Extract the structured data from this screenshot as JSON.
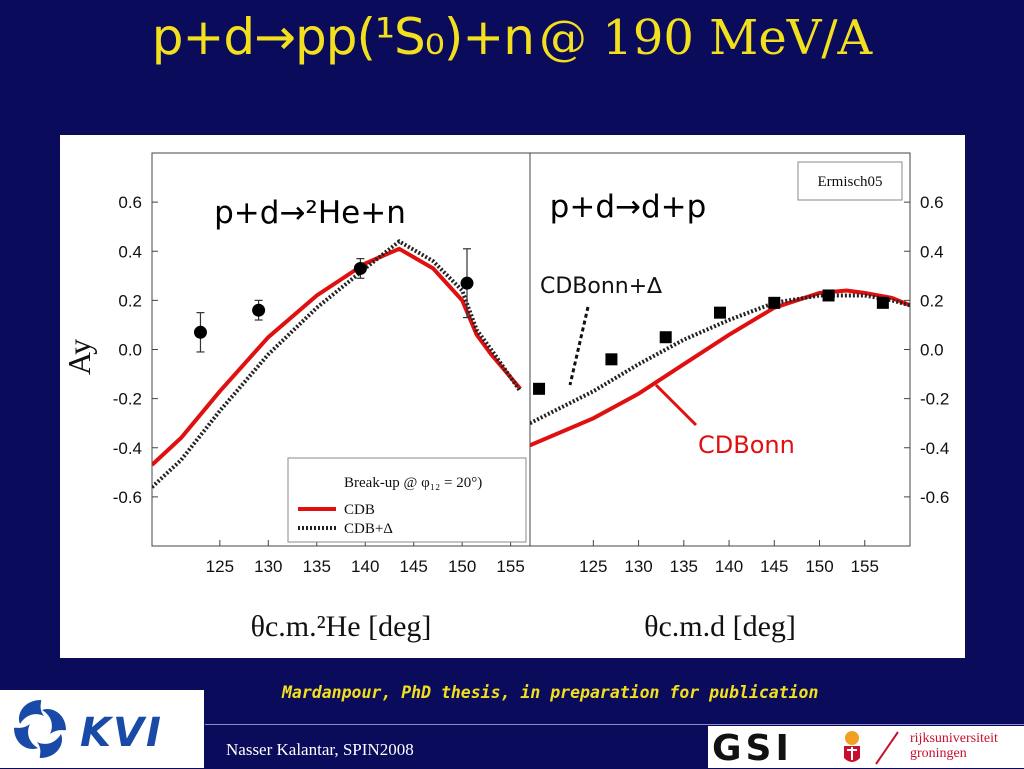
{
  "slide": {
    "title_main": "p+d→pp(¹S₀)+n",
    "title_sub": "@ 190 MeV/A",
    "citation": "Mardanpour, PhD thesis, in preparation for publication",
    "author": "Nasser Kalantar, SPIN2008",
    "logos": {
      "kvi": "KVI",
      "gsi": "GSI",
      "rug": "rijksuniversiteit\ngroningen"
    }
  },
  "colors": {
    "background": "#0b0b5c",
    "title": "#f2e01e",
    "cdb": "#e01010",
    "cdb_delta": "#222222",
    "data": "#000000"
  },
  "chart_data": [
    {
      "type": "line",
      "panel_title": "p+d→²He+n",
      "xlabel": "θc.m.²He [deg]",
      "ylabel": "Ay",
      "xlim": [
        118,
        157
      ],
      "ylim": [
        -0.8,
        0.8
      ],
      "xticks": [
        125,
        130,
        135,
        140,
        145,
        150,
        155
      ],
      "yticks": [
        0.6,
        0.4,
        0.2,
        0.0,
        -0.2,
        -0.4,
        -0.6
      ],
      "ytick_labels": [
        "0.6",
        "0.4",
        "0.2",
        "0.0",
        "-0.2",
        "-0.4",
        "-0.6"
      ],
      "legend": {
        "title": "Break-up @ φ₁₂ = 20°)",
        "position": "bottom-right",
        "entries": [
          "CDB",
          "CDB+Δ"
        ]
      },
      "series": [
        {
          "name": "CDB",
          "style": "solid",
          "x": [
            118,
            121,
            125,
            130,
            135,
            140,
            143.5,
            147,
            150,
            151.5,
            153,
            156
          ],
          "y": [
            -0.47,
            -0.36,
            -0.17,
            0.05,
            0.22,
            0.35,
            0.41,
            0.33,
            0.2,
            0.06,
            -0.02,
            -0.16
          ]
        },
        {
          "name": "CDB+Δ",
          "style": "dotted",
          "x": [
            118,
            121,
            125,
            130,
            135,
            140,
            143.5,
            147,
            150,
            151.5,
            153,
            156
          ],
          "y": [
            -0.56,
            -0.45,
            -0.25,
            -0.02,
            0.17,
            0.33,
            0.44,
            0.36,
            0.24,
            0.08,
            0.0,
            -0.17
          ]
        },
        {
          "name": "data",
          "style": "points",
          "x": [
            123,
            129,
            139.5,
            150.5
          ],
          "y": [
            0.07,
            0.16,
            0.33,
            0.27
          ],
          "err": [
            0.08,
            0.04,
            0.04,
            0.14
          ]
        }
      ]
    },
    {
      "type": "line",
      "panel_title": "p+d→d+p",
      "xlabel": "θc.m.d [deg]",
      "ylabel": "",
      "xlim": [
        118,
        160
      ],
      "ylim": [
        -0.8,
        0.8
      ],
      "xticks": [
        125,
        130,
        135,
        140,
        145,
        150,
        155
      ],
      "yticks": [
        0.6,
        0.4,
        0.2,
        0.0,
        -0.2,
        -0.4,
        -0.6
      ],
      "ytick_labels": [
        "0.6",
        "0.4",
        "0.2",
        "0.0",
        "-0.2",
        "-0.4",
        "-0.6"
      ],
      "legend_box": "Ermisch05",
      "annotations": {
        "cdbonn_delta": "CDBonn+∆",
        "cdbonn": "CDBonn"
      },
      "series": [
        {
          "name": "CDBonn",
          "style": "solid",
          "x": [
            118,
            125,
            130,
            135,
            140,
            145,
            150,
            153,
            155,
            158,
            160
          ],
          "y": [
            -0.39,
            -0.28,
            -0.18,
            -0.06,
            0.06,
            0.17,
            0.23,
            0.24,
            0.23,
            0.21,
            0.18
          ]
        },
        {
          "name": "CDBonn+∆",
          "style": "dotted",
          "x": [
            118,
            125,
            130,
            135,
            140,
            145,
            150,
            153,
            155,
            158,
            160
          ],
          "y": [
            -0.3,
            -0.17,
            -0.06,
            0.04,
            0.12,
            0.19,
            0.22,
            0.22,
            0.22,
            0.2,
            0.18
          ]
        },
        {
          "name": "Ermisch05",
          "style": "squares",
          "x": [
            119,
            127,
            133,
            139,
            145,
            151,
            157
          ],
          "y": [
            -0.16,
            -0.04,
            0.05,
            0.15,
            0.19,
            0.22,
            0.19
          ]
        }
      ]
    }
  ]
}
